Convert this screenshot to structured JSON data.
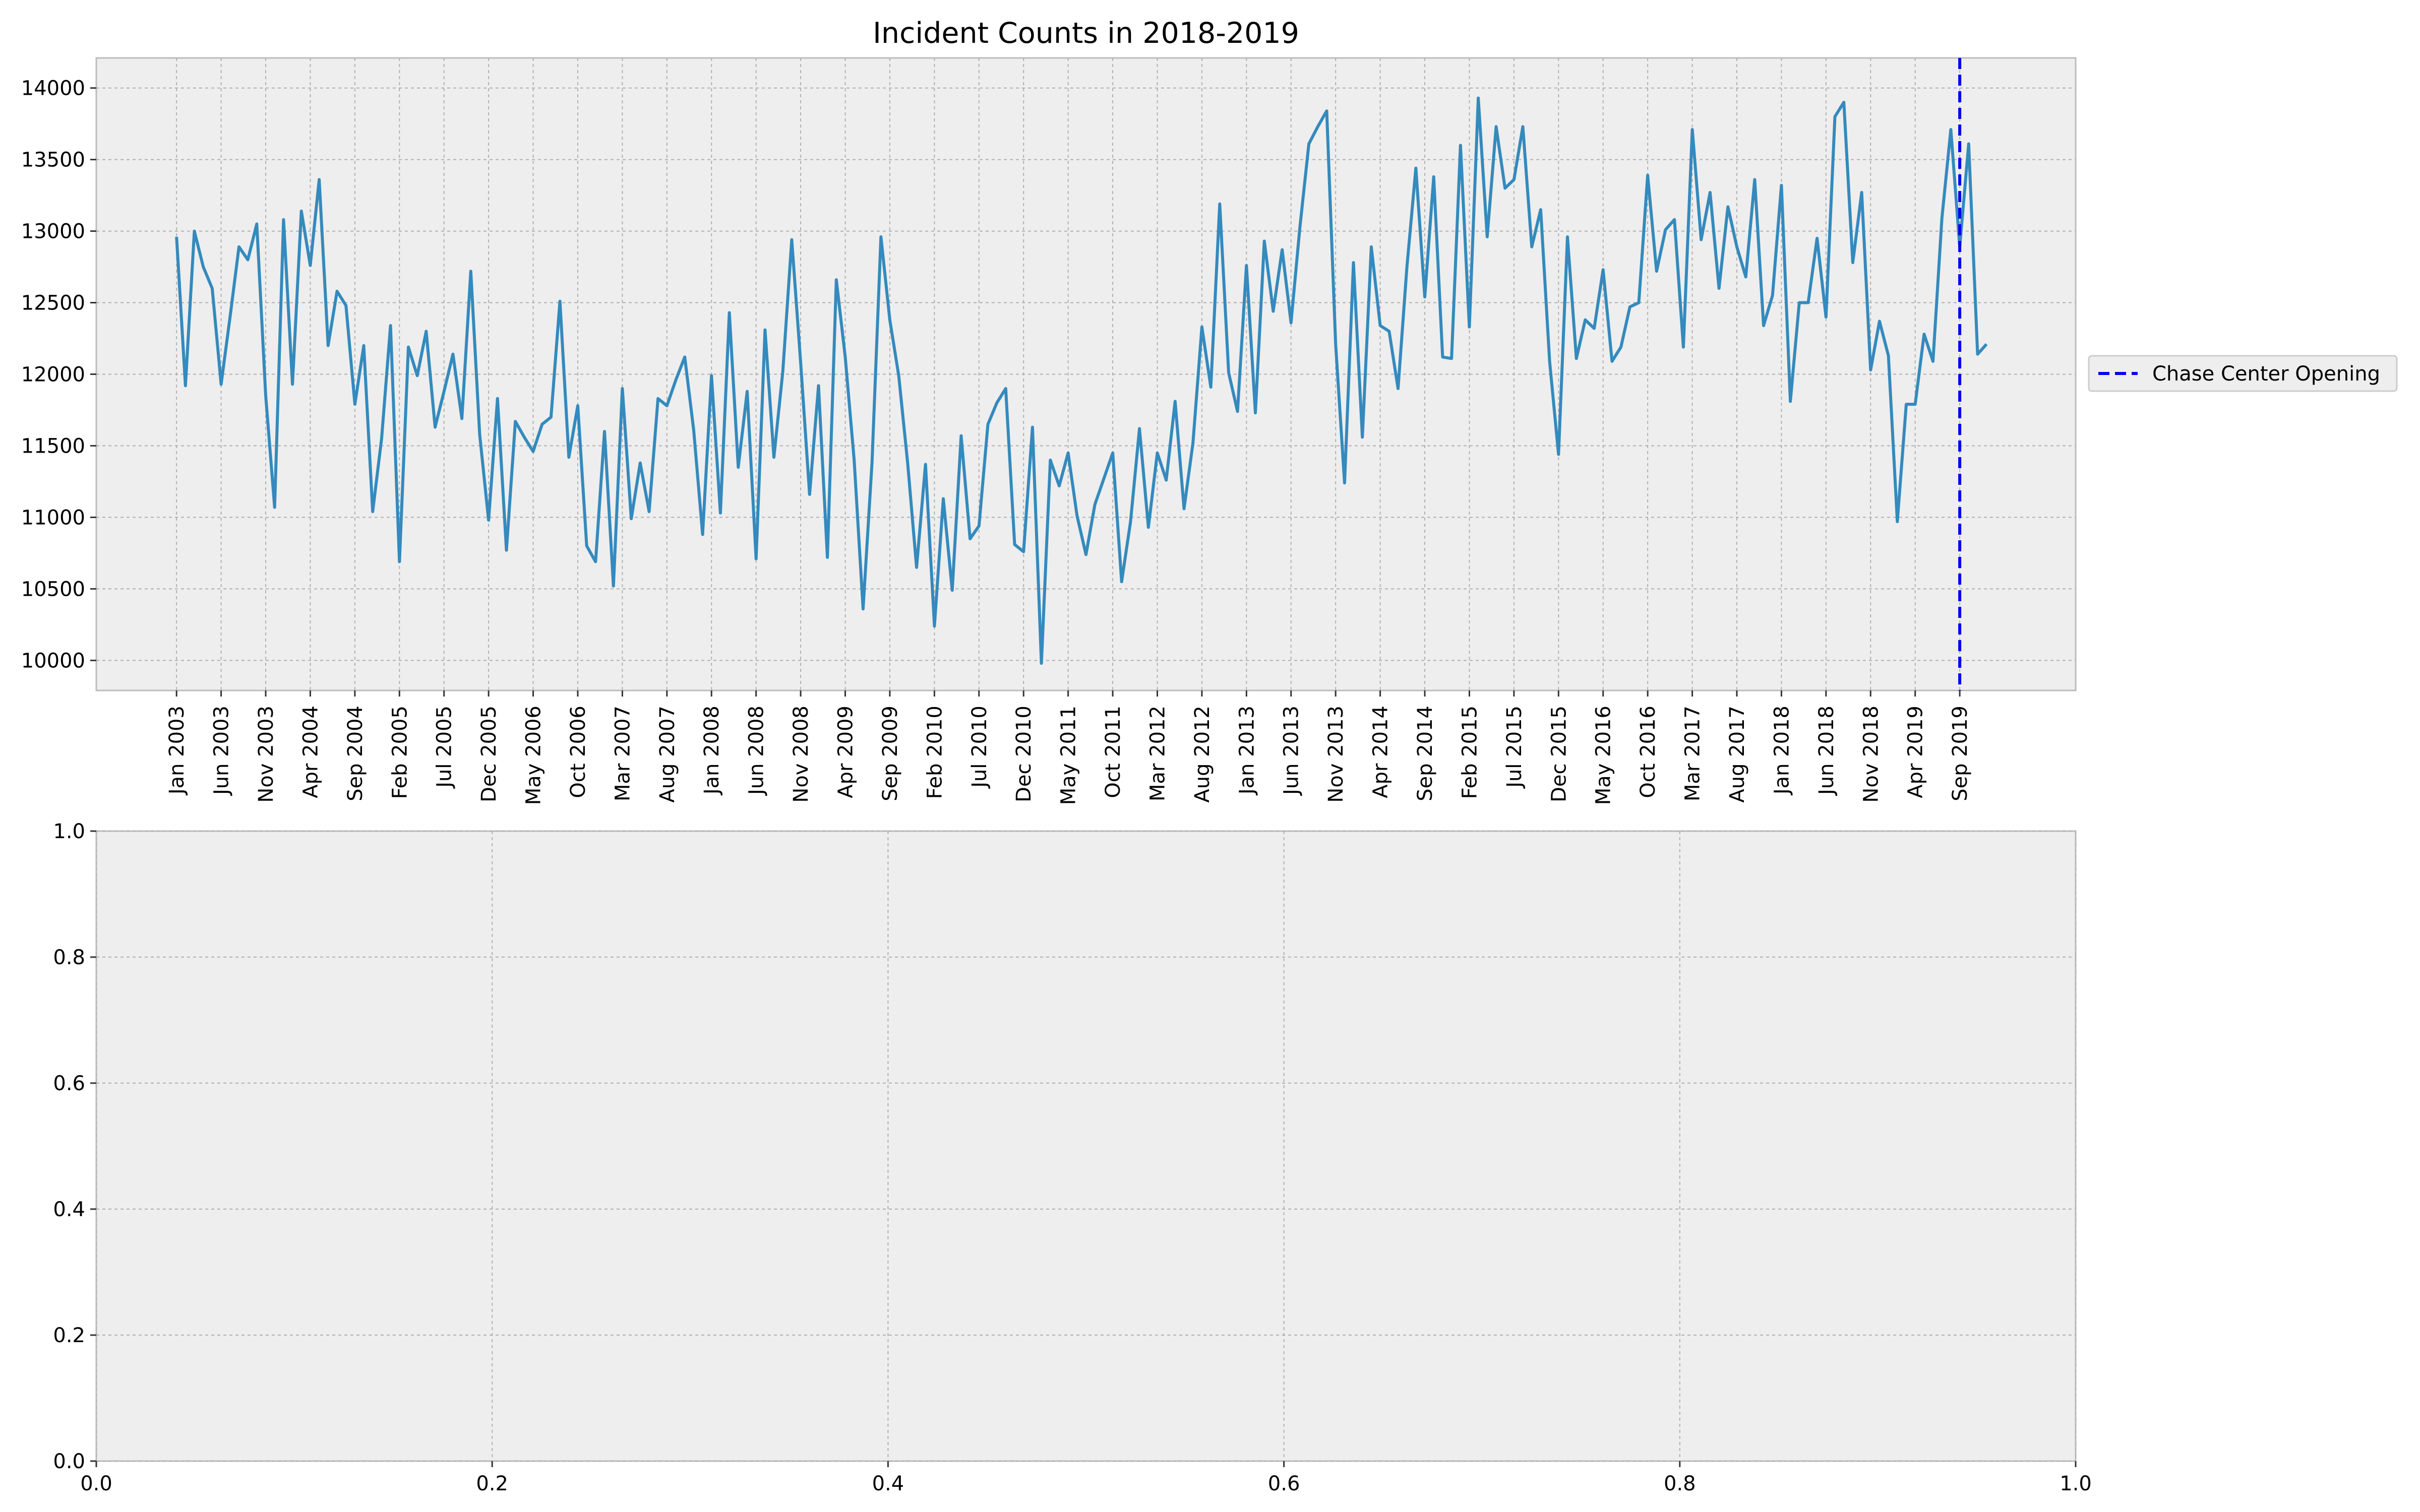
{
  "chart_data": [
    {
      "type": "line",
      "title": "Incident Counts in 2018-2019",
      "xlabel": "",
      "ylabel": "",
      "x_tick_labels": [
        "Jan 2003",
        "Jun 2003",
        "Nov 2003",
        "Apr 2004",
        "Sep 2004",
        "Feb 2005",
        "Jul 2005",
        "Dec 2005",
        "May 2006",
        "Oct 2006",
        "Mar 2007",
        "Aug 2007",
        "Jan 2008",
        "Jun 2008",
        "Nov 2008",
        "Apr 2009",
        "Sep 2009",
        "Feb 2010",
        "Jul 2010",
        "Dec 2010",
        "May 2011",
        "Oct 2011",
        "Mar 2012",
        "Aug 2012",
        "Jan 2013",
        "Jun 2013",
        "Nov 2013",
        "Apr 2014",
        "Sep 2014",
        "Feb 2015",
        "Jul 2015",
        "Dec 2015",
        "May 2016",
        "Oct 2016",
        "Mar 2017",
        "Aug 2017",
        "Jan 2018",
        "Jun 2018",
        "Nov 2018",
        "Apr 2019",
        "Sep 2019"
      ],
      "y_ticks": [
        10000,
        10500,
        11000,
        11500,
        12000,
        12500,
        13000,
        13500,
        14000
      ],
      "ylim": [
        9790,
        14210
      ],
      "x_start": "2003-01",
      "x_end": "2020-01",
      "xlim": [
        "2002-04",
        "2020-10"
      ],
      "grid": true,
      "legend_position": "right",
      "colors": {
        "series": "#348ABD",
        "marker_line": "#0000EE",
        "axes_bg": "#EEEEEE",
        "grid": "#B0B0B0"
      },
      "series": [
        {
          "name": "",
          "values": [
            12960,
            11920,
            13000,
            12750,
            12600,
            11930,
            12400,
            12890,
            12800,
            13050,
            11850,
            11070,
            13080,
            11930,
            13140,
            12760,
            13360,
            12200,
            12580,
            12480,
            11790,
            12200,
            11040,
            11550,
            12340,
            10690,
            12190,
            11990,
            12300,
            11630,
            11880,
            12140,
            11690,
            12720,
            11580,
            10980,
            11830,
            10770,
            11670,
            11560,
            11460,
            11650,
            11700,
            12510,
            11420,
            11780,
            10800,
            10690,
            11600,
            10520,
            11900,
            10990,
            11380,
            11040,
            11830,
            11780,
            11960,
            12120,
            11610,
            10880,
            11990,
            11030,
            12430,
            11350,
            11880,
            10710,
            12310,
            11420,
            12020,
            12940,
            12080,
            11160,
            11920,
            10720,
            12660,
            12120,
            11400,
            10360,
            11380,
            12960,
            12380,
            11990,
            11380,
            10650,
            11370,
            10240,
            11130,
            10490,
            11570,
            10850,
            10940,
            11650,
            11800,
            11900,
            10810,
            10760,
            11630,
            9980,
            11400,
            11220,
            11450,
            11010,
            10740,
            11090,
            11270,
            11450,
            10550,
            10970,
            11620,
            10930,
            11450,
            11260,
            11810,
            11060,
            11520,
            12330,
            11910,
            13190,
            12010,
            11740,
            12760,
            11730,
            12930,
            12440,
            12870,
            12360,
            13030,
            13610,
            13730,
            13840,
            12210,
            11240,
            12780,
            11560,
            12890,
            12340,
            12300,
            11900,
            12750,
            13440,
            12540,
            13380,
            12120,
            12110,
            13600,
            12330,
            13930,
            12960,
            13730,
            13300,
            13360,
            13730,
            12890,
            13150,
            12090,
            11440,
            12960,
            12110,
            12380,
            12320,
            12730,
            12090,
            12190,
            12470,
            12500,
            13390,
            12720,
            13010,
            13080,
            12190,
            13710,
            12940,
            13270,
            12600,
            13170,
            12890,
            12680,
            13360,
            12340,
            12550,
            13320,
            11810,
            12500,
            12500,
            12950,
            12400,
            13800,
            13900,
            12780,
            13270,
            12030,
            12370,
            12130,
            10970,
            11790,
            11790,
            12280,
            12090,
            13090,
            13710,
            12890,
            13610,
            12140,
            12210
          ]
        }
      ],
      "vertical_line": {
        "label": "Chase Center Opening",
        "date": "2019-09"
      }
    },
    {
      "type": "line",
      "title": "",
      "xlabel": "",
      "ylabel": "",
      "xlim": [
        0.0,
        1.0
      ],
      "ylim": [
        0.0,
        1.0
      ],
      "x_ticks": [
        0.0,
        0.2,
        0.4,
        0.6,
        0.8,
        1.0
      ],
      "y_ticks": [
        0.0,
        0.2,
        0.4,
        0.6,
        0.8,
        1.0
      ],
      "x_tick_labels": [
        "0.0",
        "0.2",
        "0.4",
        "0.6",
        "0.8",
        "1.0"
      ],
      "y_tick_labels": [
        "0.0",
        "0.2",
        "0.4",
        "0.6",
        "0.8",
        "1.0"
      ],
      "grid": true,
      "series": []
    }
  ]
}
